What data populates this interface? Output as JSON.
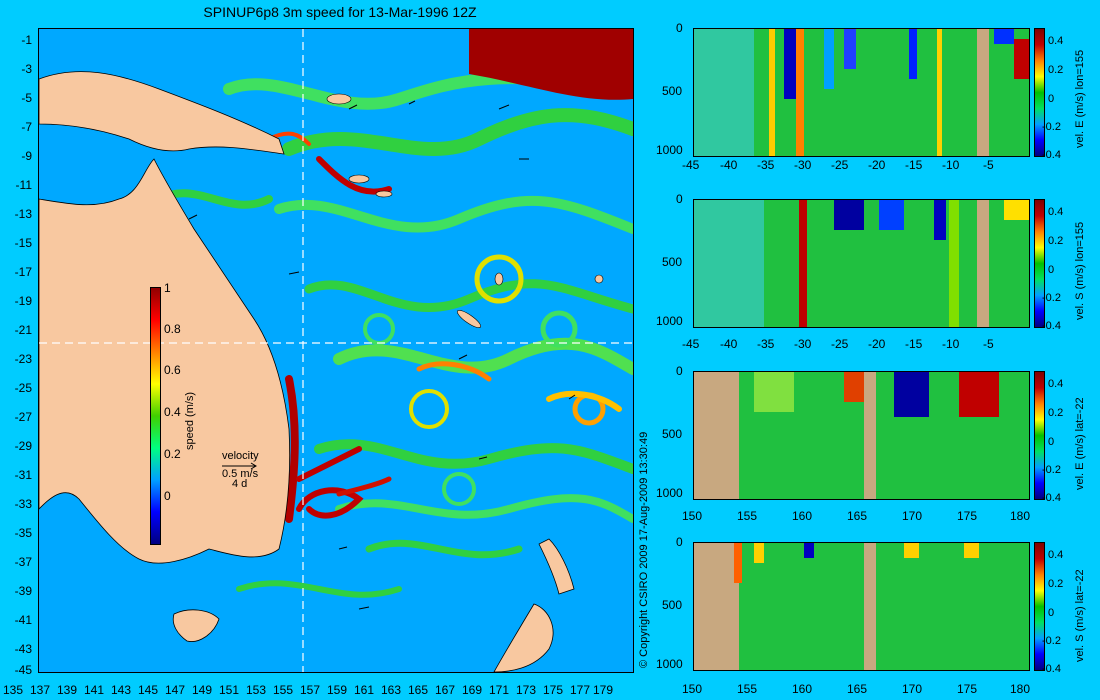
{
  "title": "SPINUP6p8 3m speed for 13-Mar-1996 12Z",
  "copyright": "© Copyright CSIRO 2009  17-Aug-2009 13:30:49",
  "map": {
    "lat_ticks": [
      "-1",
      "-3",
      "-5",
      "-7",
      "-9",
      "-11",
      "-13",
      "-15",
      "-17",
      "-19",
      "-21",
      "-23",
      "-25",
      "-27",
      "-29",
      "-31",
      "-33",
      "-35",
      "-37",
      "-39",
      "-41",
      "-43",
      "-45"
    ],
    "lon_ticks": [
      "135",
      "137",
      "139",
      "141",
      "143",
      "145",
      "147",
      "149",
      "151",
      "153",
      "155",
      "157",
      "159",
      "161",
      "163",
      "165",
      "167",
      "169",
      "171",
      "173",
      "175",
      "177",
      "179"
    ],
    "colorbar": {
      "label": "speed (m/s)",
      "ticks": [
        "1",
        "0.8",
        "0.6",
        "0.4",
        "0.2",
        "0"
      ]
    },
    "velocity_legend": {
      "title": "velocity",
      "speed": "0.5 m/s",
      "duration": "4 d"
    },
    "colors": {
      "land": "#f8c8a0",
      "ocean_low": "#0000ff",
      "ocean_high": "#a00000"
    }
  },
  "panels": [
    {
      "label": "vel. E (m/s) lon=155",
      "x_ticks": [
        "-45",
        "-40",
        "-35",
        "-30",
        "-25",
        "-20",
        "-15",
        "-10",
        "-5"
      ],
      "y_ticks": [
        "0",
        "500",
        "1000"
      ],
      "cbar_ticks": [
        "0.4",
        "0.2",
        "0",
        "-0.2",
        "-0.4"
      ]
    },
    {
      "label": "vel. S (m/s) lon=155",
      "x_ticks": [
        "-45",
        "-40",
        "-35",
        "-30",
        "-25",
        "-20",
        "-15",
        "-10",
        "-5"
      ],
      "y_ticks": [
        "0",
        "500",
        "1000"
      ],
      "cbar_ticks": [
        "0.4",
        "0.2",
        "0",
        "-0.2",
        "-0.4"
      ]
    },
    {
      "label": "vel. E (m/s) lat=-22",
      "x_ticks": [
        "150",
        "155",
        "160",
        "165",
        "170",
        "175",
        "180"
      ],
      "y_ticks": [
        "0",
        "500",
        "1000"
      ],
      "cbar_ticks": [
        "0.4",
        "0.2",
        "0",
        "-0.2",
        "-0.4"
      ]
    },
    {
      "label": "vel. S (m/s) lat=-22",
      "x_ticks": [
        "150",
        "155",
        "160",
        "165",
        "170",
        "175",
        "180"
      ],
      "y_ticks": [
        "0",
        "500",
        "1000"
      ],
      "cbar_ticks": [
        "0.4",
        "0.2",
        "0",
        "-0.2",
        "-0.4"
      ]
    }
  ]
}
